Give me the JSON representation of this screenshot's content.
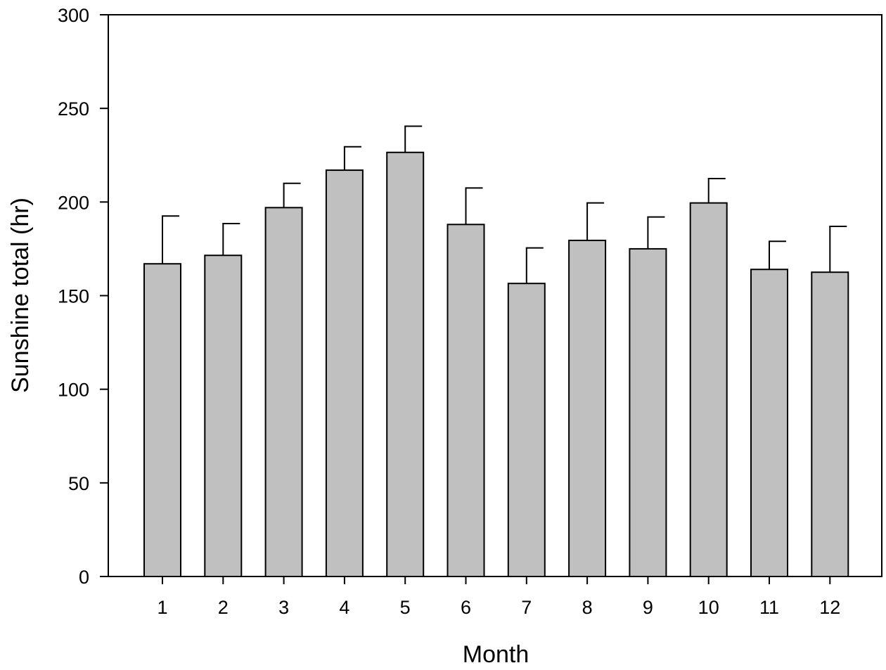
{
  "chart_data": {
    "type": "bar",
    "title": "",
    "xlabel": "Month",
    "ylabel": "Sunshine total (hr)",
    "categories": [
      "1",
      "2",
      "3",
      "4",
      "5",
      "6",
      "7",
      "8",
      "9",
      "10",
      "11",
      "12"
    ],
    "values": [
      167,
      171.5,
      197,
      217,
      226.5,
      188,
      156.5,
      179.5,
      175,
      199.5,
      164,
      162.5
    ],
    "errors": [
      25.5,
      17,
      13,
      12.5,
      14,
      19.5,
      19,
      20,
      17,
      13,
      15,
      24.5
    ],
    "ylim": [
      0,
      300
    ],
    "yticks": [
      0,
      50,
      100,
      150,
      200,
      250,
      300
    ],
    "grid": false,
    "legend": "none",
    "bar_color": "#c0c0c0",
    "edge_color": "#000000"
  }
}
